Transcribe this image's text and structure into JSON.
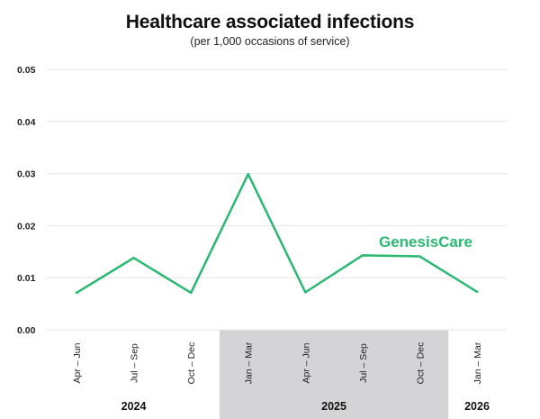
{
  "chart_data": {
    "type": "line",
    "title": "Healthcare associated infections",
    "subtitle": "(per 1,000 occasions of service)",
    "categories": [
      "Apr – Jun",
      "Jul – Sep",
      "Oct – Dec",
      "Jan – Mar",
      "Apr – Jun",
      "Jul – Sep",
      "Oct – Dec",
      "Jan – Mar"
    ],
    "year_groups": [
      {
        "label": "2024",
        "categories": [
          0,
          1,
          2
        ],
        "shaded": false
      },
      {
        "label": "2025",
        "categories": [
          3,
          4,
          5,
          6
        ],
        "shaded": true
      },
      {
        "label": "2026",
        "categories": [
          7
        ],
        "shaded": false
      }
    ],
    "series": [
      {
        "values": [
          0.0071,
          0.0138,
          0.0071,
          0.0299,
          0.0072,
          0.0143,
          0.0141,
          0.0073
        ],
        "color": "#2bb872"
      }
    ],
    "yticks": [
      "0.00",
      "0.01",
      "0.02",
      "0.03",
      "0.04",
      "0.05"
    ],
    "ylim": [
      0,
      0.05
    ],
    "grid": true,
    "annotation": "GenesisCare",
    "colors": {
      "line": "#2bb872",
      "grid": "#e6e6e6",
      "shade": "#d4d4d6",
      "brand": "#2bb872"
    }
  }
}
